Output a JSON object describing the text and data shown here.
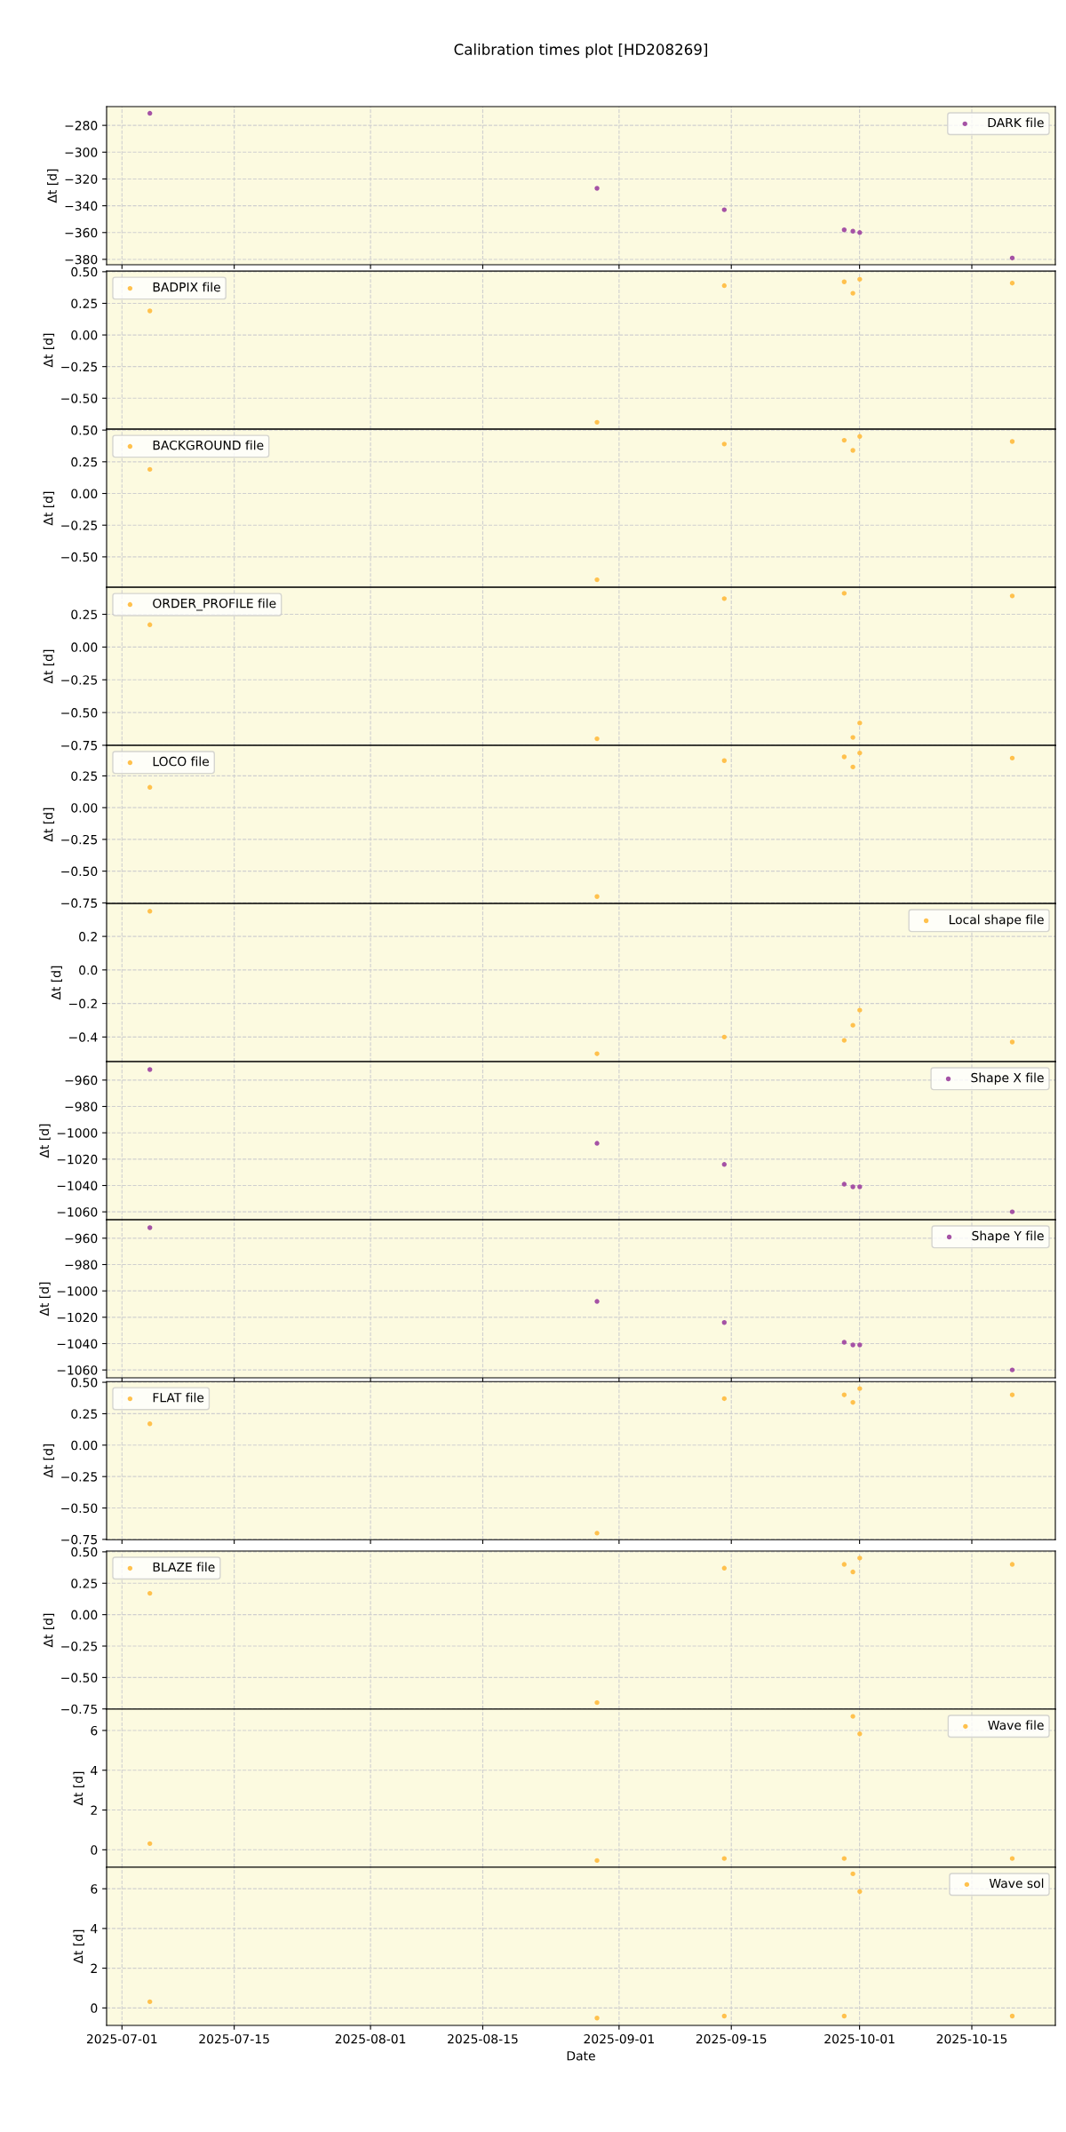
{
  "chart_data": [
    {
      "type": "scatter",
      "title": "Calibration times plot [HD208269]",
      "ylabel": "Δt [d]",
      "x": [
        "2025-07-04T11:30",
        "2025-08-29T06:00",
        "2025-09-14T03:00",
        "2025-09-29T02:00",
        "2025-09-30T04:00",
        "2025-10-01T00:30",
        "2025-10-20T01:00"
      ],
      "series": [
        {
          "name": "DARK file",
          "color": "#a552a5",
          "values": [
            -271,
            -327,
            -343,
            -358,
            -359,
            -360,
            -379
          ]
        }
      ],
      "xlim": [
        "2025-06-29T02:00",
        "2025-10-25T10:00"
      ],
      "xticks": [
        "2025-07-01",
        "2025-07-15",
        "2025-08-01",
        "2025-08-15",
        "2025-09-01",
        "2025-09-15",
        "2025-10-01",
        "2025-10-15"
      ],
      "ylim": [
        -384,
        -266
      ],
      "yticks": [
        {
          "value": -380,
          "label": "−380"
        },
        {
          "value": -360,
          "label": "−360"
        },
        {
          "value": -340,
          "label": "−340"
        },
        {
          "value": -320,
          "label": "−320"
        },
        {
          "value": -300,
          "label": "−300"
        },
        {
          "value": -280,
          "label": "−280"
        }
      ],
      "grid": true,
      "legend": "top right",
      "marker": "circle",
      "tick_labels": "y"
    },
    {
      "type": "scatter",
      "ylabel": "Δt [d]",
      "x": [
        "2025-07-04T11:30",
        "2025-08-29T06:00",
        "2025-09-14T03:00",
        "2025-09-29T02:00",
        "2025-09-30T04:00",
        "2025-10-01T00:30",
        "2025-10-20T01:00"
      ],
      "series": [
        {
          "name": "BADPIX file",
          "color": "#ffc14d",
          "values": [
            0.19,
            -0.69,
            0.39,
            0.42,
            0.33,
            0.44,
            0.41
          ]
        }
      ],
      "xlim": [
        "2025-06-29T02:00",
        "2025-10-25T10:00"
      ],
      "xticks": [
        "2025-07-01",
        "2025-07-15",
        "2025-08-01",
        "2025-08-15",
        "2025-09-01",
        "2025-09-15",
        "2025-10-01",
        "2025-10-15"
      ],
      "ylim": [
        -0.745,
        0.505
      ],
      "yticks": [
        {
          "value": -0.5,
          "label": "−0.50"
        },
        {
          "value": -0.25,
          "label": "−0.25"
        },
        {
          "value": 0,
          "label": "0.00"
        },
        {
          "value": 0.25,
          "label": "0.25"
        },
        {
          "value": 0.5,
          "label": "0.50"
        }
      ],
      "grid": true,
      "legend": "top left",
      "marker": "circle",
      "tick_labels": "y"
    },
    {
      "type": "scatter",
      "ylabel": "Δt [d]",
      "x": [
        "2025-07-04T11:30",
        "2025-08-29T06:00",
        "2025-09-14T03:00",
        "2025-09-29T02:00",
        "2025-09-30T04:00",
        "2025-10-01T00:30",
        "2025-10-20T01:00"
      ],
      "series": [
        {
          "name": "BACKGROUND file",
          "color": "#ffc14d",
          "values": [
            0.19,
            -0.68,
            0.39,
            0.42,
            0.34,
            0.45,
            0.41
          ]
        }
      ],
      "xlim": [
        "2025-06-29T02:00",
        "2025-10-25T10:00"
      ],
      "xticks": [
        "2025-07-01",
        "2025-07-15",
        "2025-08-01",
        "2025-08-15",
        "2025-09-01",
        "2025-09-15",
        "2025-10-01",
        "2025-10-15"
      ],
      "ylim": [
        -0.74,
        0.507
      ],
      "yticks": [
        {
          "value": -0.5,
          "label": "−0.50"
        },
        {
          "value": -0.25,
          "label": "−0.25"
        },
        {
          "value": 0,
          "label": "0.00"
        },
        {
          "value": 0.25,
          "label": "0.25"
        },
        {
          "value": 0.5,
          "label": "0.50"
        }
      ],
      "grid": true,
      "legend": "top left",
      "marker": "circle",
      "tick_labels": "y"
    },
    {
      "type": "scatter",
      "ylabel": "Δt [d]",
      "x": [
        "2025-07-04T11:30",
        "2025-08-29T06:00",
        "2025-09-14T03:00",
        "2025-09-29T02:00",
        "2025-09-30T04:00",
        "2025-10-01T00:30",
        "2025-10-20T01:00"
      ],
      "series": [
        {
          "name": "ORDER_PROFILE file",
          "color": "#ffc14d",
          "values": [
            0.17,
            -0.7,
            0.37,
            0.41,
            -0.69,
            -0.58,
            0.39
          ]
        }
      ],
      "xlim": [
        "2025-06-29T02:00",
        "2025-10-25T10:00"
      ],
      "xticks": [
        "2025-07-01",
        "2025-07-15",
        "2025-08-01",
        "2025-08-15",
        "2025-09-01",
        "2025-09-15",
        "2025-10-01",
        "2025-10-15"
      ],
      "ylim": [
        -0.751,
        0.456
      ],
      "yticks": [
        {
          "value": -0.75,
          "label": "−0.75"
        },
        {
          "value": -0.5,
          "label": "−0.50"
        },
        {
          "value": -0.25,
          "label": "−0.25"
        },
        {
          "value": 0,
          "label": "0.00"
        },
        {
          "value": 0.25,
          "label": "0.25"
        }
      ],
      "grid": true,
      "legend": "top left",
      "marker": "circle",
      "tick_labels": "y"
    },
    {
      "type": "scatter",
      "ylabel": "Δt [d]",
      "x": [
        "2025-07-04T11:30",
        "2025-08-29T06:00",
        "2025-09-14T03:00",
        "2025-09-29T02:00",
        "2025-09-30T04:00",
        "2025-10-01T00:30",
        "2025-10-20T01:00"
      ],
      "series": [
        {
          "name": "LOCO file",
          "color": "#ffc14d",
          "values": [
            0.16,
            -0.7,
            0.37,
            0.4,
            0.32,
            0.43,
            0.39
          ]
        }
      ],
      "xlim": [
        "2025-06-29T02:00",
        "2025-10-25T10:00"
      ],
      "xticks": [
        "2025-07-01",
        "2025-07-15",
        "2025-08-01",
        "2025-08-15",
        "2025-09-01",
        "2025-09-15",
        "2025-10-01",
        "2025-10-15"
      ],
      "ylim": [
        -0.755,
        0.49
      ],
      "yticks": [
        {
          "value": -0.75,
          "label": "−0.75"
        },
        {
          "value": -0.5,
          "label": "−0.50"
        },
        {
          "value": -0.25,
          "label": "−0.25"
        },
        {
          "value": 0,
          "label": "0.00"
        },
        {
          "value": 0.25,
          "label": "0.25"
        }
      ],
      "grid": true,
      "legend": "top left",
      "marker": "circle",
      "tick_labels": "y"
    },
    {
      "type": "scatter",
      "ylabel": "Δt [d]",
      "x": [
        "2025-07-04T11:30",
        "2025-08-29T06:00",
        "2025-09-14T03:00",
        "2025-09-29T02:00",
        "2025-09-30T04:00",
        "2025-10-01T00:30",
        "2025-10-20T01:00"
      ],
      "series": [
        {
          "name": "Local shape file",
          "color": "#ffc14d",
          "values": [
            0.35,
            -0.5,
            -0.4,
            -0.42,
            -0.33,
            -0.24,
            -0.43
          ]
        }
      ],
      "xlim": [
        "2025-06-29T02:00",
        "2025-10-25T10:00"
      ],
      "xticks": [
        "2025-07-01",
        "2025-07-15",
        "2025-08-01",
        "2025-08-15",
        "2025-09-01",
        "2025-09-15",
        "2025-10-01",
        "2025-10-15"
      ],
      "ylim": [
        -0.547,
        0.396
      ],
      "yticks": [
        {
          "value": -0.4,
          "label": "−0.4"
        },
        {
          "value": -0.2,
          "label": "−0.2"
        },
        {
          "value": 0,
          "label": "0.0"
        },
        {
          "value": 0.2,
          "label": "0.2"
        }
      ],
      "grid": true,
      "legend": "top right",
      "marker": "circle",
      "tick_labels": "y"
    },
    {
      "type": "scatter",
      "ylabel": "Δt [d]",
      "x": [
        "2025-07-04T11:30",
        "2025-08-29T06:00",
        "2025-09-14T03:00",
        "2025-09-29T02:00",
        "2025-09-30T04:00",
        "2025-10-01T00:30",
        "2025-10-20T01:00"
      ],
      "series": [
        {
          "name": "Shape X file",
          "color": "#a552a5",
          "values": [
            -952,
            -1008,
            -1024,
            -1039,
            -1041,
            -1041,
            -1060
          ]
        }
      ],
      "xlim": [
        "2025-06-29T02:00",
        "2025-10-25T10:00"
      ],
      "xticks": [
        "2025-07-01",
        "2025-07-15",
        "2025-08-01",
        "2025-08-15",
        "2025-09-01",
        "2025-09-15",
        "2025-10-01",
        "2025-10-15"
      ],
      "ylim": [
        -1066,
        -946
      ],
      "yticks": [
        {
          "value": -1060,
          "label": "−1060"
        },
        {
          "value": -1040,
          "label": "−1040"
        },
        {
          "value": -1020,
          "label": "−1020"
        },
        {
          "value": -1000,
          "label": "−1000"
        },
        {
          "value": -980,
          "label": "−980"
        },
        {
          "value": -960,
          "label": "−960"
        }
      ],
      "grid": true,
      "legend": "top right",
      "marker": "circle",
      "tick_labels": "y"
    },
    {
      "type": "scatter",
      "ylabel": "Δt [d]",
      "x": [
        "2025-07-04T11:30",
        "2025-08-29T06:00",
        "2025-09-14T03:00",
        "2025-09-29T02:00",
        "2025-09-30T04:00",
        "2025-10-01T00:30",
        "2025-10-20T01:00"
      ],
      "series": [
        {
          "name": "Shape Y file",
          "color": "#a552a5",
          "values": [
            -952,
            -1008,
            -1024,
            -1039,
            -1041,
            -1041,
            -1060
          ]
        }
      ],
      "xlim": [
        "2025-06-29T02:00",
        "2025-10-25T10:00"
      ],
      "xticks": [
        "2025-07-01",
        "2025-07-15",
        "2025-08-01",
        "2025-08-15",
        "2025-09-01",
        "2025-09-15",
        "2025-10-01",
        "2025-10-15"
      ],
      "ylim": [
        -1066,
        -946
      ],
      "yticks": [
        {
          "value": -1060,
          "label": "−1060"
        },
        {
          "value": -1040,
          "label": "−1040"
        },
        {
          "value": -1020,
          "label": "−1020"
        },
        {
          "value": -1000,
          "label": "−1000"
        },
        {
          "value": -980,
          "label": "−980"
        },
        {
          "value": -960,
          "label": "−960"
        }
      ],
      "grid": true,
      "legend": "top right",
      "marker": "circle",
      "tick_labels": "y"
    },
    {
      "type": "scatter",
      "ylabel": "Δt [d]",
      "x": [
        "2025-07-04T11:30",
        "2025-08-29T06:00",
        "2025-09-14T03:00",
        "2025-09-29T02:00",
        "2025-09-30T04:00",
        "2025-10-01T00:30",
        "2025-10-20T01:00"
      ],
      "series": [
        {
          "name": "FLAT file",
          "color": "#ffc14d",
          "values": [
            0.17,
            -0.7,
            0.37,
            0.4,
            0.34,
            0.45,
            0.4
          ]
        }
      ],
      "xlim": [
        "2025-06-29T02:00",
        "2025-10-25T10:00"
      ],
      "xticks": [
        "2025-07-01",
        "2025-07-15",
        "2025-08-01",
        "2025-08-15",
        "2025-09-01",
        "2025-09-15",
        "2025-10-01",
        "2025-10-15"
      ],
      "ylim": [
        -0.752,
        0.506
      ],
      "yticks": [
        {
          "value": -0.75,
          "label": "−0.75"
        },
        {
          "value": -0.5,
          "label": "−0.50"
        },
        {
          "value": -0.25,
          "label": "−0.25"
        },
        {
          "value": 0,
          "label": "0.00"
        },
        {
          "value": 0.25,
          "label": "0.25"
        },
        {
          "value": 0.5,
          "label": "0.50"
        }
      ],
      "grid": true,
      "legend": "top left",
      "marker": "circle",
      "tick_labels": "y"
    },
    {
      "type": "scatter",
      "ylabel": "Δt [d]",
      "x": [
        "2025-07-04T11:30",
        "2025-08-29T06:00",
        "2025-09-14T03:00",
        "2025-09-29T02:00",
        "2025-09-30T04:00",
        "2025-10-01T00:30",
        "2025-10-20T01:00"
      ],
      "series": [
        {
          "name": "BLAZE file",
          "color": "#ffc14d",
          "values": [
            0.17,
            -0.7,
            0.37,
            0.4,
            0.34,
            0.45,
            0.4
          ]
        }
      ],
      "xlim": [
        "2025-06-29T02:00",
        "2025-10-25T10:00"
      ],
      "xticks": [
        "2025-07-01",
        "2025-07-15",
        "2025-08-01",
        "2025-08-15",
        "2025-09-01",
        "2025-09-15",
        "2025-10-01",
        "2025-10-15"
      ],
      "ylim": [
        -0.752,
        0.506
      ],
      "yticks": [
        {
          "value": -0.75,
          "label": "−0.75"
        },
        {
          "value": -0.5,
          "label": "−0.50"
        },
        {
          "value": -0.25,
          "label": "−0.25"
        },
        {
          "value": 0,
          "label": "0.00"
        },
        {
          "value": 0.25,
          "label": "0.25"
        },
        {
          "value": 0.5,
          "label": "0.50"
        }
      ],
      "grid": true,
      "legend": "top left",
      "marker": "circle",
      "tick_labels": "y"
    },
    {
      "type": "scatter",
      "ylabel": "Δt [d]",
      "x": [
        "2025-07-04T11:30",
        "2025-08-29T06:00",
        "2025-09-14T03:00",
        "2025-09-29T02:00",
        "2025-09-30T04:00",
        "2025-10-01T00:30",
        "2025-10-20T01:00"
      ],
      "series": [
        {
          "name": "Wave file",
          "color": "#ffc14d",
          "values": [
            0.31,
            -0.54,
            -0.44,
            -0.44,
            6.71,
            5.83,
            -0.44
          ]
        }
      ],
      "xlim": [
        "2025-06-29T02:00",
        "2025-10-25T10:00"
      ],
      "xticks": [
        "2025-07-01",
        "2025-07-15",
        "2025-08-01",
        "2025-08-15",
        "2025-09-01",
        "2025-09-15",
        "2025-10-01",
        "2025-10-15"
      ],
      "ylim": [
        -0.88,
        7.07
      ],
      "yticks": [
        0,
        2,
        4,
        6
      ],
      "grid": true,
      "legend": "top right",
      "marker": "circle",
      "tick_labels": "y"
    },
    {
      "type": "scatter",
      "xlabel": "Date",
      "ylabel": "Δt [d]",
      "x": [
        "2025-07-04T11:30",
        "2025-08-29T06:00",
        "2025-09-14T03:00",
        "2025-09-29T02:00",
        "2025-09-30T04:00",
        "2025-10-01T00:30",
        "2025-10-20T01:00"
      ],
      "series": [
        {
          "name": "Wave sol",
          "color": "#ffc14d",
          "values": [
            0.31,
            -0.51,
            -0.41,
            -0.41,
            6.75,
            5.86,
            -0.41
          ]
        }
      ],
      "xlim": [
        "2025-06-29T02:00",
        "2025-10-25T10:00"
      ],
      "xticks": [
        "2025-07-01",
        "2025-07-15",
        "2025-08-01",
        "2025-08-15",
        "2025-09-01",
        "2025-09-15",
        "2025-10-01",
        "2025-10-15"
      ],
      "ylim": [
        -0.88,
        7.08
      ],
      "yticks": [
        0,
        2,
        4,
        6
      ],
      "grid": true,
      "legend": "top right",
      "marker": "circle"
    }
  ]
}
